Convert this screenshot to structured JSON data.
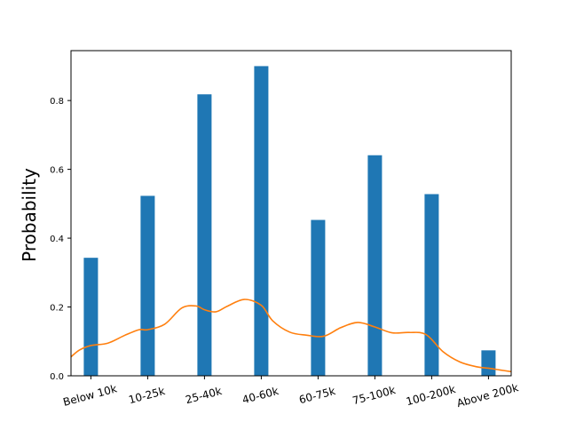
{
  "chart_data": {
    "type": "bar",
    "title": "",
    "xlabel": "",
    "ylabel": "Probability",
    "categories": [
      "Below 10k",
      "10-25k",
      "25-40k",
      "40-60k",
      "60-75k",
      "75-100k",
      "100-200k",
      "Above 200k"
    ],
    "series": [
      {
        "type": "bar",
        "color": "#1f77b4",
        "values": [
          0.343,
          0.523,
          0.818,
          0.9,
          0.453,
          0.641,
          0.528,
          0.074
        ]
      },
      {
        "type": "line",
        "color": "#ff7f0e",
        "x": [
          -0.35,
          -0.2,
          0.0,
          0.3,
          0.6,
          0.85,
          1.0,
          1.3,
          1.6,
          1.85,
          2.0,
          2.2,
          2.4,
          2.7,
          3.0,
          3.2,
          3.5,
          3.8,
          4.1,
          4.4,
          4.7,
          5.0,
          5.3,
          5.6,
          5.9,
          6.2,
          6.5,
          6.8,
          7.0,
          7.2,
          7.4
        ],
        "y": [
          0.055,
          0.075,
          0.088,
          0.095,
          0.118,
          0.134,
          0.134,
          0.15,
          0.197,
          0.203,
          0.192,
          0.186,
          0.202,
          0.222,
          0.205,
          0.16,
          0.127,
          0.118,
          0.115,
          0.14,
          0.155,
          0.142,
          0.125,
          0.126,
          0.12,
          0.07,
          0.04,
          0.026,
          0.022,
          0.017,
          0.012
        ]
      }
    ],
    "yticks": [
      "0.0",
      "0.2",
      "0.4",
      "0.6",
      "0.8"
    ],
    "ylim": [
      0,
      0.945
    ],
    "xlim": [
      -0.35,
      7.4
    ],
    "grid": false
  }
}
